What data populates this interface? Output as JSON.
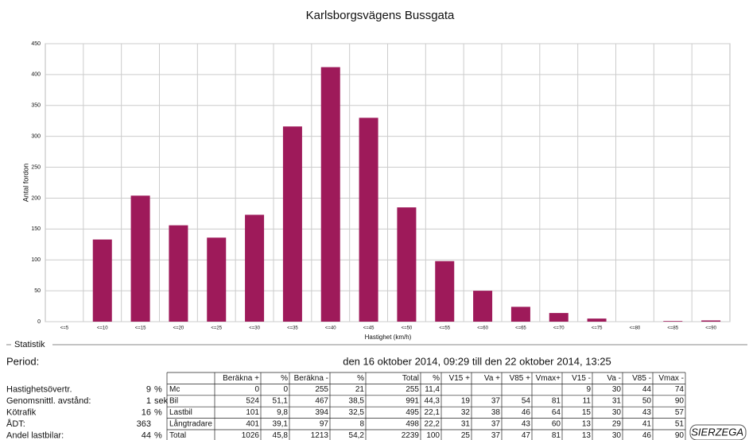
{
  "chart_data": {
    "type": "bar",
    "title": "Karlsborgsvägens Bussgata",
    "x_label": "Hastighet (km/h)",
    "y_label": "Antal fordon",
    "categories": [
      "<=5",
      "<=10",
      "<=15",
      "<=20",
      "<=25",
      "<=30",
      "<=35",
      "<=40",
      "<=45",
      "<=50",
      "<=55",
      "<=60",
      "<=65",
      "<=70",
      "<=75",
      "<=80",
      "<=85",
      "<=90"
    ],
    "values": [
      0,
      133,
      204,
      156,
      136,
      173,
      316,
      412,
      330,
      185,
      98,
      50,
      24,
      14,
      5,
      0,
      1,
      2
    ],
    "color": "#9e1a5a",
    "ylim": [
      0,
      450
    ],
    "yticks": [
      0,
      50,
      100,
      150,
      200,
      250,
      300,
      350,
      400,
      450
    ],
    "grid": true
  },
  "section": "Statistik",
  "period": {
    "label": "Period:",
    "text": "den 16 oktober 2014, 09:29 till den 22 oktober 2014, 13:25"
  },
  "stats": [
    {
      "label": "Hastighetsövertr.",
      "value": "9",
      "unit": "%"
    },
    {
      "label": "Genomsnittl. avstånd:",
      "value": "1",
      "unit": "sek"
    },
    {
      "label": "Kötrafik",
      "value": "16",
      "unit": "%"
    },
    {
      "label": "ÅDT:",
      "value": "363"
    },
    {
      "label": "Andel lastbilar:",
      "value": "44",
      "unit": "%"
    }
  ],
  "table": {
    "header": [
      "Beräkna +",
      "%",
      "Beräkna -",
      "%",
      "Total",
      "%",
      "V15 +",
      "Va +",
      "V85 +",
      "Vmax+",
      "V15 -",
      "Va -",
      "V85 -",
      "Vmax -"
    ],
    "rows": [
      [
        "Mc",
        "0",
        "0",
        "255",
        "21",
        "255",
        "11,4",
        null,
        null,
        null,
        null,
        "9",
        "30",
        "44",
        "74"
      ],
      [
        "Bil",
        "524",
        "51,1",
        "467",
        "38,5",
        "991",
        "44,3",
        "19",
        "37",
        "54",
        "81",
        "11",
        "31",
        "50",
        "90"
      ],
      [
        "Lastbil",
        "101",
        "9,8",
        "394",
        "32,5",
        "495",
        "22,1",
        "32",
        "38",
        "46",
        "64",
        "15",
        "30",
        "43",
        "57"
      ],
      [
        "Långtradare",
        "401",
        "39,1",
        "97",
        "8",
        "498",
        "22,2",
        "31",
        "37",
        "43",
        "60",
        "13",
        "29",
        "41",
        "51"
      ],
      [
        "Total",
        "1026",
        "45,8",
        "1213",
        "54,2",
        "2239",
        "100",
        "25",
        "37",
        "47",
        "81",
        "13",
        "30",
        "46",
        "90"
      ]
    ]
  },
  "logo": "SIERZEGA"
}
